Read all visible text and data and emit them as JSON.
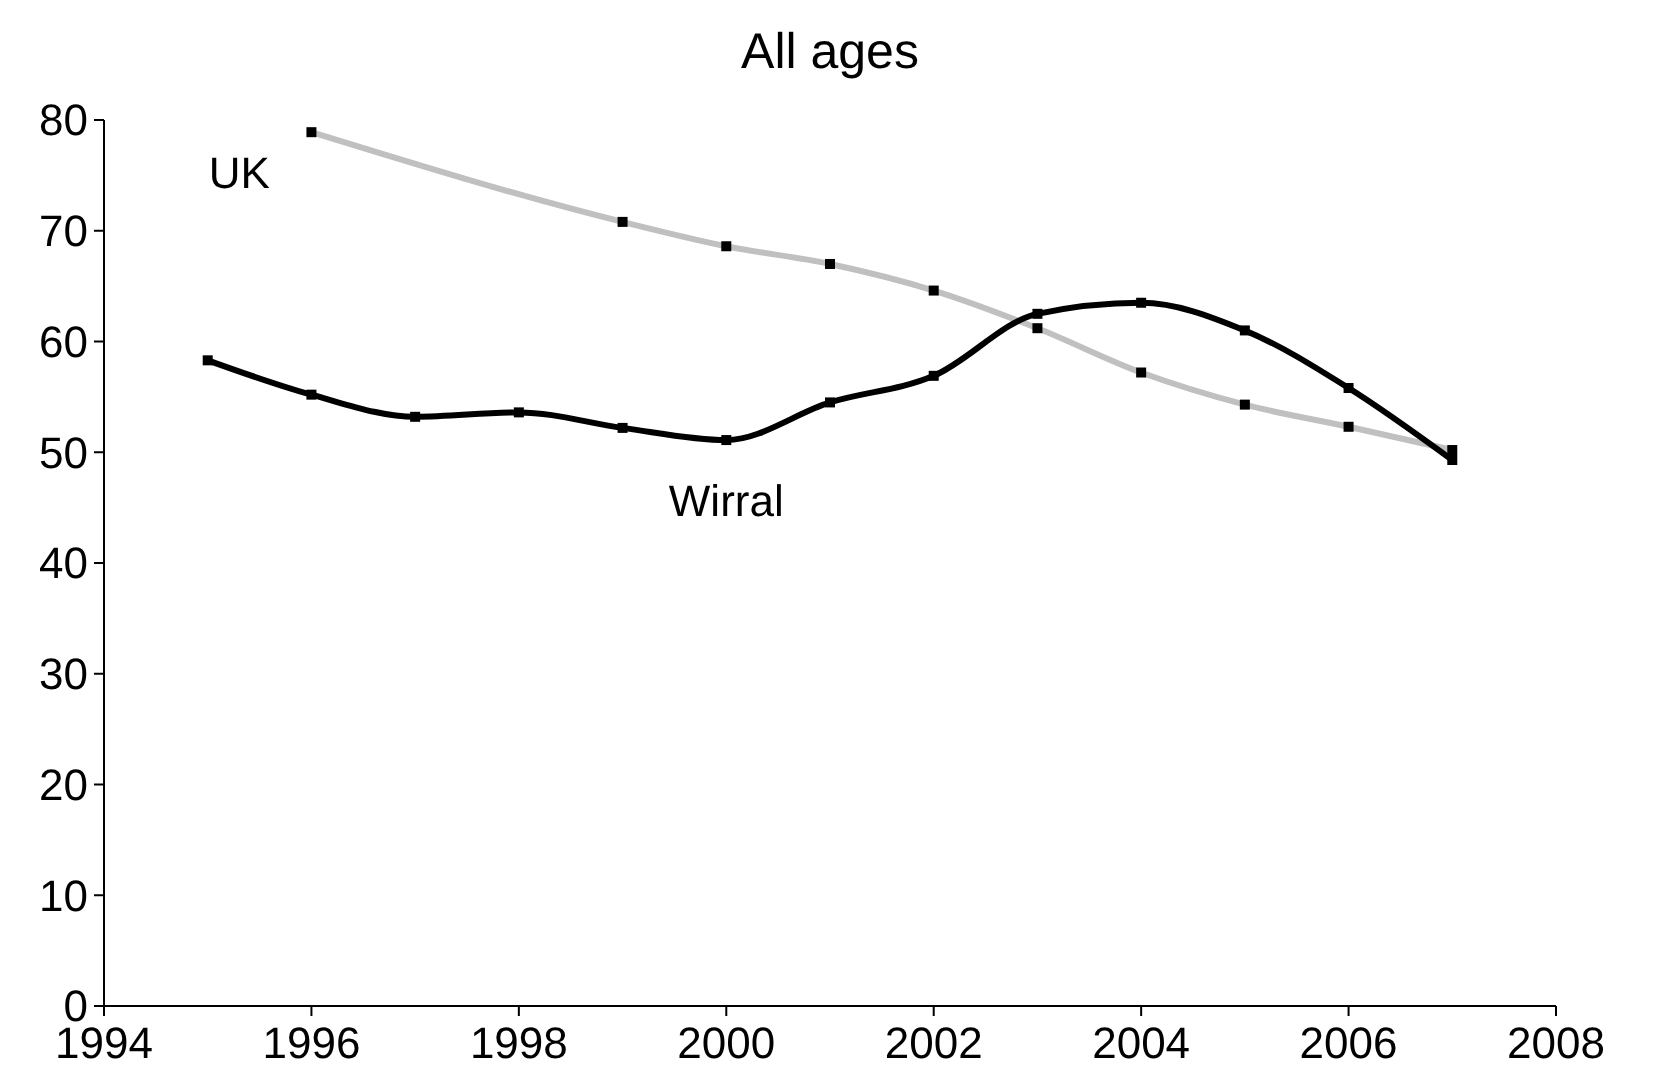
{
  "chart_data": {
    "type": "line",
    "title": "All ages",
    "xlim": [
      1994,
      2008
    ],
    "xticks": [
      1994,
      1996,
      1998,
      2000,
      2002,
      2004,
      2006,
      2008
    ],
    "ylim": [
      0,
      80
    ],
    "yticks": [
      0,
      10,
      20,
      30,
      40,
      50,
      60,
      70,
      80
    ],
    "grid": false,
    "marker": "square",
    "line_style": "solid",
    "series": [
      {
        "name": "UK",
        "color": "#c0c0c0",
        "x": [
          1996,
          1999,
          2000,
          2001,
          2002,
          2003,
          2004,
          2005,
          2006,
          2007
        ],
        "values": [
          78.9,
          70.8,
          68.6,
          67.0,
          64.6,
          61.2,
          57.2,
          54.3,
          52.3,
          50.2
        ]
      },
      {
        "name": "Wirral",
        "color": "#000000",
        "x": [
          1995,
          1996,
          1997,
          1998,
          1999,
          2000,
          2001,
          2002,
          2003,
          2004,
          2005,
          2006,
          2007
        ],
        "values": [
          58.3,
          55.2,
          53.2,
          53.6,
          52.2,
          51.1,
          54.5,
          56.9,
          62.5,
          63.5,
          61.0,
          55.8,
          49.3
        ]
      }
    ]
  }
}
